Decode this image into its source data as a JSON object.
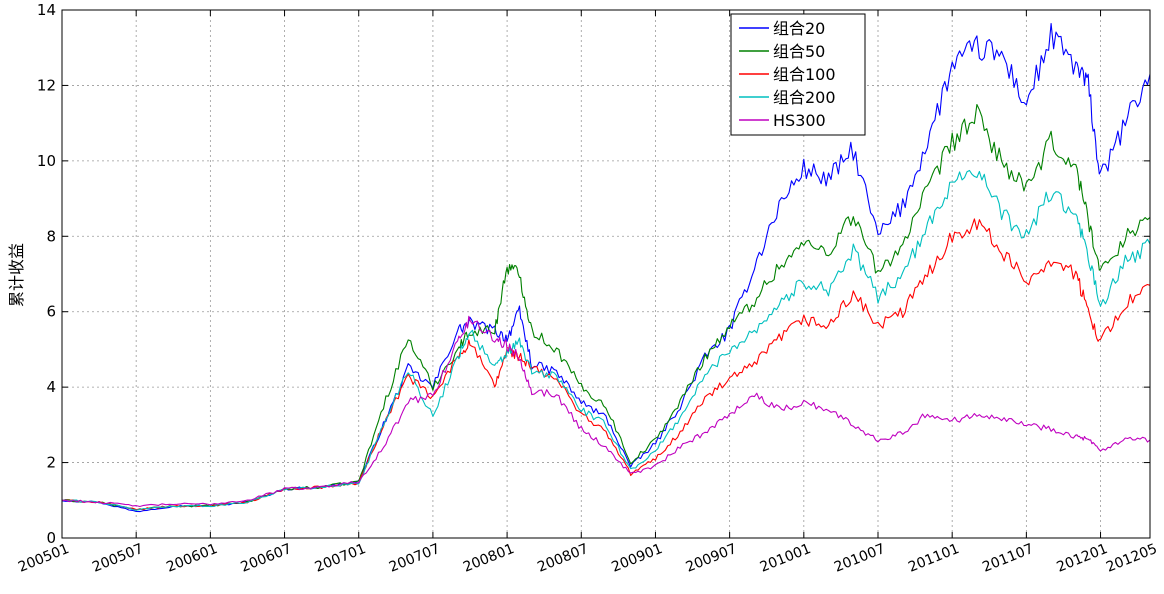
{
  "chart_data": {
    "type": "line",
    "title": "",
    "xlabel": "",
    "ylabel": "累计收益",
    "xlim": [
      "200501",
      "201205"
    ],
    "ylim": [
      0,
      14
    ],
    "yticks": [
      0,
      2,
      4,
      6,
      8,
      10,
      12,
      14
    ],
    "xticks": [
      "200501",
      "200507",
      "200601",
      "200607",
      "200701",
      "200707",
      "200801",
      "200807",
      "200901",
      "200907",
      "201001",
      "201007",
      "201101",
      "201107",
      "201201",
      "201205"
    ],
    "grid": true,
    "legend_position": "top-right",
    "series": [
      {
        "name": "组合20",
        "color": "#0000ff",
        "x": [
          "200501",
          "200504",
          "200507",
          "200510",
          "200601",
          "200604",
          "200607",
          "200610",
          "200701",
          "200703",
          "200705",
          "200707",
          "200709",
          "200710",
          "200712",
          "200801",
          "200802",
          "200803",
          "200805",
          "200807",
          "200809",
          "200811",
          "200901",
          "200903",
          "200905",
          "200907",
          "200909",
          "200911",
          "201001",
          "201003",
          "201005",
          "201007",
          "201009",
          "201011",
          "201101",
          "201103",
          "201105",
          "201107",
          "201109",
          "201111",
          "201112",
          "201201",
          "201203",
          "201205"
        ],
        "y": [
          1.0,
          0.95,
          0.7,
          0.85,
          0.85,
          0.95,
          1.3,
          1.35,
          1.5,
          3.0,
          4.5,
          4.0,
          5.5,
          5.7,
          5.5,
          5.3,
          6.0,
          4.6,
          4.4,
          3.6,
          3.2,
          1.9,
          2.5,
          3.5,
          4.8,
          5.5,
          7.2,
          8.8,
          9.8,
          9.5,
          10.3,
          8.0,
          8.8,
          10.5,
          12.5,
          13.0,
          12.8,
          11.5,
          13.3,
          12.5,
          12.0,
          9.5,
          11.0,
          12.3
        ]
      },
      {
        "name": "组合50",
        "color": "#008000",
        "x": [
          "200501",
          "200504",
          "200507",
          "200510",
          "200601",
          "200604",
          "200607",
          "200610",
          "200701",
          "200703",
          "200705",
          "200707",
          "200709",
          "200710",
          "200712",
          "200801",
          "200802",
          "200803",
          "200805",
          "200807",
          "200809",
          "200811",
          "200901",
          "200903",
          "200905",
          "200907",
          "200909",
          "200911",
          "201001",
          "201003",
          "201005",
          "201007",
          "201009",
          "201011",
          "201101",
          "201103",
          "201105",
          "201107",
          "201109",
          "201111",
          "201112",
          "201201",
          "201203",
          "201205"
        ],
        "y": [
          1.0,
          0.95,
          0.75,
          0.85,
          0.85,
          0.95,
          1.3,
          1.35,
          1.5,
          3.5,
          5.3,
          4.0,
          5.0,
          5.5,
          5.5,
          7.2,
          7.0,
          5.5,
          5.0,
          4.0,
          3.5,
          2.0,
          2.6,
          3.6,
          4.8,
          5.6,
          6.3,
          7.2,
          7.8,
          7.6,
          8.6,
          7.0,
          7.8,
          9.2,
          10.5,
          11.2,
          10.0,
          9.2,
          10.5,
          9.8,
          8.5,
          7.0,
          8.0,
          8.5
        ]
      },
      {
        "name": "组合100",
        "color": "#ff0000",
        "x": [
          "200501",
          "200504",
          "200507",
          "200510",
          "200601",
          "200604",
          "200607",
          "200610",
          "200701",
          "200703",
          "200705",
          "200707",
          "200709",
          "200710",
          "200712",
          "200801",
          "200802",
          "200803",
          "200805",
          "200807",
          "200809",
          "200811",
          "200901",
          "200903",
          "200905",
          "200907",
          "200909",
          "200911",
          "201001",
          "201003",
          "201005",
          "201007",
          "201009",
          "201011",
          "201101",
          "201103",
          "201105",
          "201107",
          "201109",
          "201111",
          "201112",
          "201201",
          "201203",
          "201205"
        ],
        "y": [
          1.0,
          0.95,
          0.75,
          0.85,
          0.85,
          0.95,
          1.3,
          1.35,
          1.45,
          3.0,
          4.3,
          3.7,
          4.8,
          5.2,
          4.0,
          5.0,
          4.8,
          4.5,
          4.2,
          3.3,
          2.8,
          1.7,
          2.1,
          2.8,
          3.7,
          4.2,
          4.6,
          5.3,
          5.8,
          5.6,
          6.5,
          5.6,
          6.0,
          7.0,
          8.0,
          8.4,
          7.6,
          6.8,
          7.4,
          7.0,
          6.0,
          5.2,
          6.2,
          6.7
        ]
      },
      {
        "name": "组合200",
        "color": "#00bfbf",
        "x": [
          "200501",
          "200504",
          "200507",
          "200510",
          "200601",
          "200604",
          "200607",
          "200610",
          "200701",
          "200703",
          "200705",
          "200707",
          "200709",
          "200710",
          "200712",
          "200801",
          "200802",
          "200803",
          "200805",
          "200807",
          "200809",
          "200811",
          "200901",
          "200903",
          "200905",
          "200907",
          "200909",
          "200911",
          "201001",
          "201003",
          "201005",
          "201007",
          "201009",
          "201011",
          "201101",
          "201103",
          "201105",
          "201107",
          "201109",
          "201111",
          "201112",
          "201201",
          "201203",
          "201205"
        ],
        "y": [
          1.0,
          0.95,
          0.75,
          0.85,
          0.85,
          0.95,
          1.3,
          1.35,
          1.45,
          3.0,
          4.5,
          3.2,
          4.8,
          5.5,
          4.5,
          4.9,
          5.2,
          4.4,
          4.3,
          3.4,
          3.0,
          1.8,
          2.3,
          3.2,
          4.3,
          5.0,
          5.5,
          6.2,
          6.8,
          6.6,
          7.6,
          6.4,
          7.0,
          8.2,
          9.5,
          9.8,
          8.6,
          8.0,
          9.2,
          8.5,
          7.5,
          6.1,
          7.3,
          7.8
        ]
      },
      {
        "name": "HS300",
        "color": "#bf00bf",
        "x": [
          "200501",
          "200504",
          "200507",
          "200510",
          "200601",
          "200604",
          "200607",
          "200610",
          "200701",
          "200703",
          "200705",
          "200707",
          "200709",
          "200710",
          "200712",
          "200801",
          "200802",
          "200803",
          "200805",
          "200807",
          "200809",
          "200811",
          "200901",
          "200903",
          "200905",
          "200907",
          "200909",
          "200911",
          "201001",
          "201003",
          "201005",
          "201007",
          "201009",
          "201011",
          "201101",
          "201103",
          "201105",
          "201107",
          "201109",
          "201111",
          "201112",
          "201201",
          "201203",
          "201205"
        ],
        "y": [
          1.0,
          0.95,
          0.85,
          0.9,
          0.9,
          1.0,
          1.3,
          1.35,
          1.5,
          2.4,
          3.6,
          3.8,
          5.2,
          5.8,
          5.3,
          5.1,
          4.8,
          3.9,
          3.8,
          2.9,
          2.4,
          1.7,
          1.9,
          2.4,
          2.8,
          3.3,
          3.8,
          3.4,
          3.6,
          3.4,
          3.0,
          2.6,
          2.8,
          3.3,
          3.1,
          3.3,
          3.2,
          3.0,
          2.9,
          2.7,
          2.6,
          2.3,
          2.6,
          2.6
        ]
      }
    ]
  }
}
